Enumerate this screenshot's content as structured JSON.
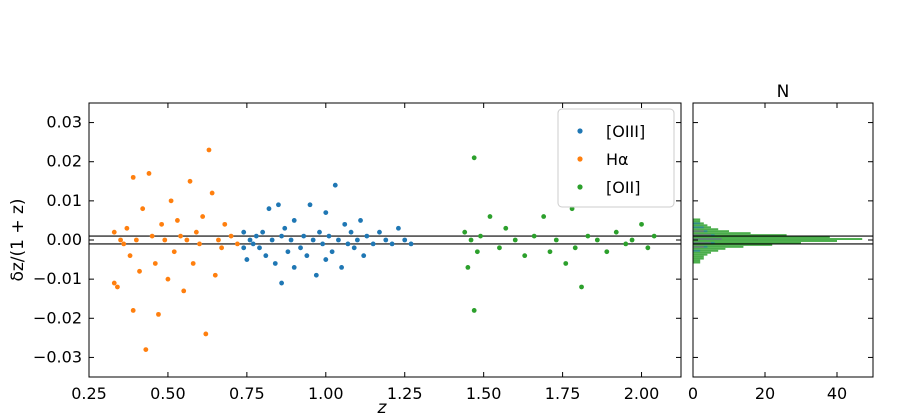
{
  "chart_data": [
    {
      "type": "scatter",
      "xlabel": "z",
      "ylabel": "δz/(1 + z)",
      "xlim": [
        0.25,
        2.125
      ],
      "ylim": [
        -0.035,
        0.035
      ],
      "x_ticks": [
        0.25,
        0.5,
        0.75,
        1.0,
        1.25,
        1.5,
        1.75,
        2.0
      ],
      "x_tick_labels": [
        "0.25",
        "0.50",
        "0.75",
        "1.00",
        "1.25",
        "1.50",
        "1.75",
        "2.00"
      ],
      "y_ticks": [
        -0.03,
        -0.02,
        -0.01,
        0.0,
        0.01,
        0.02,
        0.03
      ],
      "y_tick_labels": [
        "−0.03",
        "−0.02",
        "−0.01",
        "0.00",
        "0.01",
        "0.02",
        "0.03"
      ],
      "reference_lines_y": [
        -0.001,
        0.001
      ],
      "legend_position": "top-right",
      "grid": false,
      "series": [
        {
          "name": "[OIII]",
          "color": "#1f77b4",
          "points": [
            [
              0.74,
              -0.002
            ],
            [
              0.74,
              0.002
            ],
            [
              0.75,
              -0.005
            ],
            [
              0.76,
              0.0
            ],
            [
              0.77,
              -0.001
            ],
            [
              0.78,
              0.001
            ],
            [
              0.79,
              -0.002
            ],
            [
              0.8,
              0.002
            ],
            [
              0.81,
              -0.004
            ],
            [
              0.82,
              0.008
            ],
            [
              0.83,
              0.0
            ],
            [
              0.84,
              -0.006
            ],
            [
              0.85,
              0.009
            ],
            [
              0.86,
              0.001
            ],
            [
              0.86,
              -0.011
            ],
            [
              0.87,
              0.003
            ],
            [
              0.88,
              -0.003
            ],
            [
              0.89,
              0.0
            ],
            [
              0.9,
              0.005
            ],
            [
              0.9,
              -0.007
            ],
            [
              0.92,
              -0.002
            ],
            [
              0.93,
              0.001
            ],
            [
              0.94,
              -0.004
            ],
            [
              0.95,
              0.009
            ],
            [
              0.96,
              0.0
            ],
            [
              0.97,
              -0.009
            ],
            [
              0.98,
              0.002
            ],
            [
              0.99,
              -0.001
            ],
            [
              1.0,
              0.007
            ],
            [
              1.0,
              -0.005
            ],
            [
              1.01,
              0.001
            ],
            [
              1.02,
              -0.003
            ],
            [
              1.03,
              0.014
            ],
            [
              1.04,
              0.0
            ],
            [
              1.05,
              -0.007
            ],
            [
              1.06,
              0.004
            ],
            [
              1.07,
              -0.001
            ],
            [
              1.08,
              0.002
            ],
            [
              1.09,
              -0.002
            ],
            [
              1.1,
              0.0
            ],
            [
              1.11,
              0.005
            ],
            [
              1.12,
              -0.004
            ],
            [
              1.13,
              0.001
            ],
            [
              1.15,
              -0.001
            ],
            [
              1.17,
              0.002
            ],
            [
              1.19,
              0.0
            ],
            [
              1.21,
              -0.001
            ],
            [
              1.23,
              0.003
            ],
            [
              1.25,
              0.0
            ],
            [
              1.27,
              -0.001
            ]
          ]
        },
        {
          "name": "Hα",
          "color": "#ff7f0e",
          "points": [
            [
              0.33,
              0.002
            ],
            [
              0.33,
              -0.011
            ],
            [
              0.34,
              -0.012
            ],
            [
              0.35,
              0.0
            ],
            [
              0.36,
              -0.001
            ],
            [
              0.37,
              0.003
            ],
            [
              0.38,
              -0.004
            ],
            [
              0.39,
              0.016
            ],
            [
              0.39,
              -0.018
            ],
            [
              0.4,
              0.0
            ],
            [
              0.41,
              -0.008
            ],
            [
              0.42,
              0.008
            ],
            [
              0.43,
              -0.028
            ],
            [
              0.44,
              0.017
            ],
            [
              0.45,
              0.001
            ],
            [
              0.46,
              -0.006
            ],
            [
              0.47,
              -0.019
            ],
            [
              0.48,
              0.004
            ],
            [
              0.49,
              0.0
            ],
            [
              0.5,
              -0.01
            ],
            [
              0.51,
              0.01
            ],
            [
              0.52,
              -0.003
            ],
            [
              0.53,
              0.005
            ],
            [
              0.54,
              0.001
            ],
            [
              0.55,
              -0.013
            ],
            [
              0.56,
              0.0
            ],
            [
              0.57,
              0.015
            ],
            [
              0.58,
              -0.006
            ],
            [
              0.59,
              0.002
            ],
            [
              0.6,
              -0.001
            ],
            [
              0.61,
              0.006
            ],
            [
              0.62,
              -0.024
            ],
            [
              0.63,
              0.023
            ],
            [
              0.64,
              0.012
            ],
            [
              0.65,
              -0.009
            ],
            [
              0.66,
              0.0
            ],
            [
              0.67,
              -0.002
            ],
            [
              0.68,
              0.004
            ],
            [
              0.7,
              0.001
            ],
            [
              0.72,
              -0.001
            ]
          ]
        },
        {
          "name": "[OII]",
          "color": "#2ca02c",
          "points": [
            [
              1.44,
              0.002
            ],
            [
              1.45,
              -0.007
            ],
            [
              1.46,
              0.0
            ],
            [
              1.47,
              0.021
            ],
            [
              1.47,
              -0.018
            ],
            [
              1.48,
              -0.003
            ],
            [
              1.49,
              0.001
            ],
            [
              1.52,
              0.006
            ],
            [
              1.55,
              -0.002
            ],
            [
              1.57,
              0.003
            ],
            [
              1.6,
              0.0
            ],
            [
              1.63,
              -0.004
            ],
            [
              1.66,
              0.001
            ],
            [
              1.69,
              0.006
            ],
            [
              1.71,
              -0.003
            ],
            [
              1.73,
              0.0
            ],
            [
              1.76,
              -0.006
            ],
            [
              1.78,
              0.008
            ],
            [
              1.79,
              -0.002
            ],
            [
              1.81,
              -0.012
            ],
            [
              1.83,
              0.001
            ],
            [
              1.86,
              0.0
            ],
            [
              1.89,
              -0.003
            ],
            [
              1.92,
              0.002
            ],
            [
              1.95,
              -0.001
            ],
            [
              1.97,
              0.0
            ],
            [
              2.0,
              0.004
            ],
            [
              2.02,
              -0.002
            ],
            [
              2.04,
              0.001
            ]
          ]
        }
      ]
    },
    {
      "type": "histogram",
      "orientation": "horizontal",
      "title": "N",
      "xlim": [
        0,
        50
      ],
      "x_ticks": [
        0,
        20,
        40
      ],
      "x_tick_labels": [
        "0",
        "20",
        "40"
      ],
      "ylim": [
        -0.035,
        0.035
      ],
      "reference_lines_y": [
        -0.001,
        0.001
      ],
      "bin_width": 0.0005,
      "series": [
        {
          "name": "[OII]",
          "color": "#2ca02c",
          "bins": [
            [
              -0.006,
              2
            ],
            [
              -0.0055,
              2
            ],
            [
              -0.005,
              3
            ],
            [
              -0.0045,
              3
            ],
            [
              -0.004,
              4
            ],
            [
              -0.0035,
              5
            ],
            [
              -0.003,
              7
            ],
            [
              -0.0025,
              9
            ],
            [
              -0.002,
              14
            ],
            [
              -0.0015,
              22
            ],
            [
              -0.001,
              30
            ],
            [
              -0.0005,
              40
            ],
            [
              0.0,
              47
            ],
            [
              0.0005,
              38
            ],
            [
              0.001,
              26
            ],
            [
              0.0015,
              16
            ],
            [
              0.002,
              10
            ],
            [
              0.0025,
              7
            ],
            [
              0.003,
              5
            ],
            [
              0.0035,
              4
            ],
            [
              0.004,
              3
            ],
            [
              0.0045,
              2
            ],
            [
              0.005,
              2
            ]
          ]
        },
        {
          "name": "Hα",
          "color": "#ff7f0e",
          "bins": [
            [
              -0.002,
              3
            ],
            [
              -0.001,
              5
            ],
            [
              0.0,
              8
            ],
            [
              0.001,
              5
            ],
            [
              0.002,
              3
            ]
          ]
        },
        {
          "name": "[OIII]",
          "color": "#1f77b4",
          "bins": [
            [
              -0.003,
              2
            ],
            [
              -0.002,
              4
            ],
            [
              -0.001,
              6
            ],
            [
              0.0,
              8
            ],
            [
              0.001,
              6
            ],
            [
              0.002,
              4
            ],
            [
              0.003,
              3
            ],
            [
              0.004,
              2
            ]
          ]
        }
      ]
    }
  ]
}
